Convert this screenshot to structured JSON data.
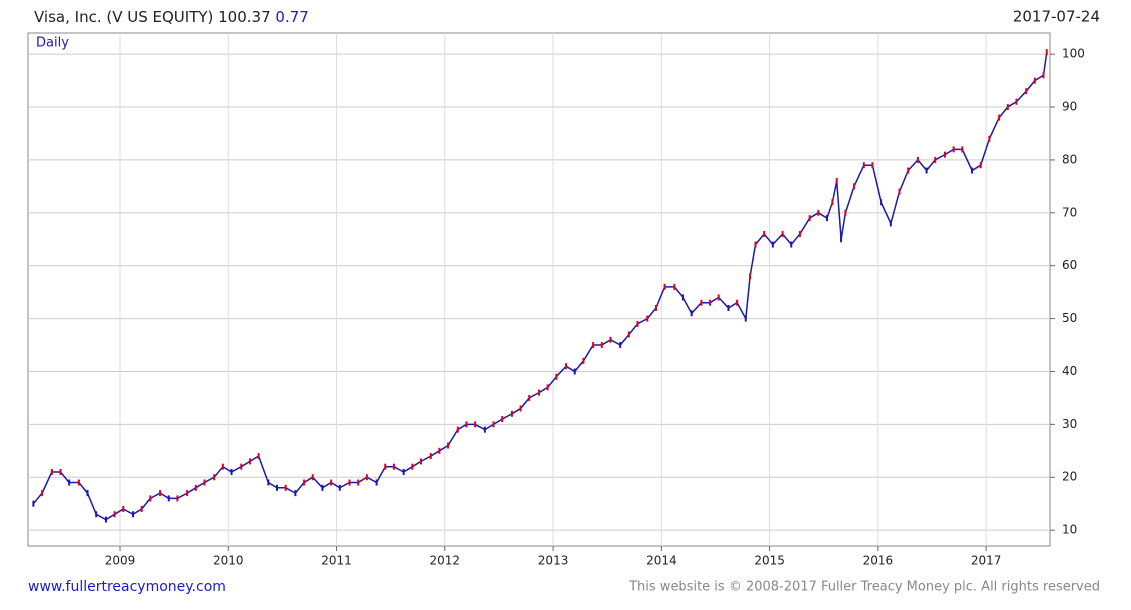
{
  "chart_data": {
    "type": "line",
    "title": "Visa, Inc. (V US EQUITY) 100.37",
    "change": "0.77",
    "date": "2017-07-24",
    "frequency": "Daily",
    "footer_left": "www.fullertreacymoney.com",
    "footer_right": "This website is © 2008-2017 Fuller Treacy Money plc. All rights reserved",
    "x": [
      2008.2,
      2008.28,
      2008.37,
      2008.45,
      2008.53,
      2008.62,
      2008.7,
      2008.78,
      2008.87,
      2008.95,
      2009.03,
      2009.12,
      2009.2,
      2009.28,
      2009.37,
      2009.45,
      2009.53,
      2009.62,
      2009.7,
      2009.78,
      2009.87,
      2009.95,
      2010.03,
      2010.12,
      2010.2,
      2010.28,
      2010.37,
      2010.45,
      2010.53,
      2010.62,
      2010.7,
      2010.78,
      2010.87,
      2010.95,
      2011.03,
      2011.12,
      2011.2,
      2011.28,
      2011.37,
      2011.45,
      2011.53,
      2011.62,
      2011.7,
      2011.78,
      2011.87,
      2011.95,
      2012.03,
      2012.12,
      2012.2,
      2012.28,
      2012.37,
      2012.45,
      2012.53,
      2012.62,
      2012.7,
      2012.78,
      2012.87,
      2012.95,
      2013.03,
      2013.12,
      2013.2,
      2013.28,
      2013.37,
      2013.45,
      2013.53,
      2013.62,
      2013.7,
      2013.78,
      2013.87,
      2013.95,
      2014.03,
      2014.12,
      2014.2,
      2014.28,
      2014.37,
      2014.45,
      2014.53,
      2014.62,
      2014.7,
      2014.78,
      2014.82,
      2014.87,
      2014.95,
      2015.03,
      2015.12,
      2015.2,
      2015.28,
      2015.37,
      2015.45,
      2015.53,
      2015.58,
      2015.62,
      2015.66,
      2015.7,
      2015.78,
      2015.87,
      2015.95,
      2016.03,
      2016.12,
      2016.2,
      2016.28,
      2016.37,
      2016.45,
      2016.53,
      2016.62,
      2016.7,
      2016.78,
      2016.87,
      2016.95,
      2017.03,
      2017.12,
      2017.2,
      2017.28,
      2017.37,
      2017.45,
      2017.53,
      2017.56
    ],
    "series": [
      {
        "name": "Daily",
        "color": "#1a1aa6",
        "up_color": "#e0001b",
        "values": [
          15,
          17,
          21,
          21,
          19,
          19,
          17,
          13,
          12,
          13,
          14,
          13,
          14,
          16,
          17,
          16,
          16,
          17,
          18,
          19,
          20,
          22,
          21,
          22,
          23,
          24,
          19,
          18,
          18,
          17,
          19,
          20,
          18,
          19,
          18,
          19,
          19,
          20,
          19,
          22,
          22,
          21,
          22,
          23,
          24,
          25,
          26,
          29,
          30,
          30,
          29,
          30,
          31,
          32,
          33,
          35,
          36,
          37,
          39,
          41,
          40,
          42,
          45,
          45,
          46,
          45,
          47,
          49,
          50,
          52,
          56,
          56,
          54,
          51,
          53,
          53,
          54,
          52,
          53,
          50,
          58,
          64,
          66,
          64,
          66,
          64,
          66,
          69,
          70,
          69,
          72,
          76,
          65,
          70,
          75,
          79,
          79,
          72,
          68,
          74,
          78,
          80,
          78,
          80,
          81,
          82,
          82,
          78,
          79,
          84,
          88,
          90,
          91,
          93,
          95,
          96,
          100.37
        ]
      }
    ],
    "xlim": [
      2008.15,
      2017.59
    ],
    "xticks": [
      2009,
      2010,
      2011,
      2012,
      2013,
      2014,
      2015,
      2016,
      2017
    ],
    "ylim": [
      7,
      104
    ],
    "yticks": [
      10,
      20,
      30,
      40,
      50,
      60,
      70,
      80,
      90,
      100
    ],
    "grid": true
  }
}
